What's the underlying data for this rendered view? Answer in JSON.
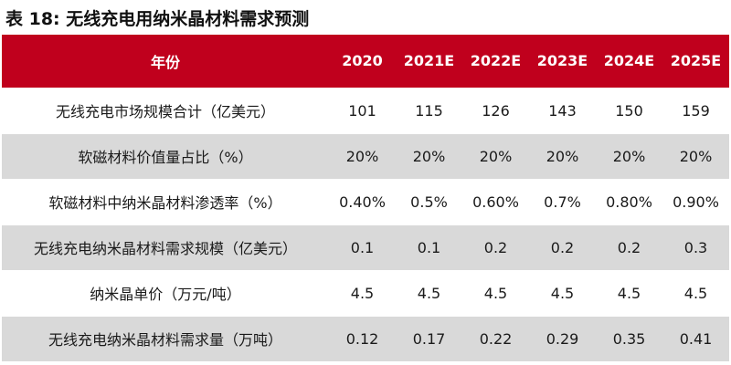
{
  "title": "表 18: 无线充电用纳米晶材料需求预测",
  "header": {
    "label": "年份",
    "years": [
      "2020",
      "2021E",
      "2022E",
      "2023E",
      "2024E",
      "2025E"
    ]
  },
  "rows": [
    {
      "label": "无线充电市场规模合计（亿美元）",
      "values": [
        "101",
        "115",
        "126",
        "143",
        "150",
        "159"
      ]
    },
    {
      "label": "软磁材料价值量占比（%）",
      "values": [
        "20%",
        "20%",
        "20%",
        "20%",
        "20%",
        "20%"
      ]
    },
    {
      "label": "软磁材料中纳米晶材料渗透率（%）",
      "values": [
        "0.40%",
        "0.5%",
        "0.60%",
        "0.7%",
        "0.80%",
        "0.90%"
      ]
    },
    {
      "label": "无线充电纳米晶材料需求规模（亿美元）",
      "values": [
        "0.1",
        "0.1",
        "0.2",
        "0.2",
        "0.2",
        "0.3"
      ]
    },
    {
      "label": "纳米晶单价（万元/吨）",
      "values": [
        "4.5",
        "4.5",
        "4.5",
        "4.5",
        "4.5",
        "4.5"
      ]
    },
    {
      "label": "无线充电纳米晶材料需求量（万吨）",
      "values": [
        "0.12",
        "0.17",
        "0.22",
        "0.29",
        "0.35",
        "0.41"
      ]
    }
  ],
  "colors": {
    "header_background": "#c0001d",
    "header_text": "#ffffff",
    "alt_row_background": "#d9d9d9"
  }
}
